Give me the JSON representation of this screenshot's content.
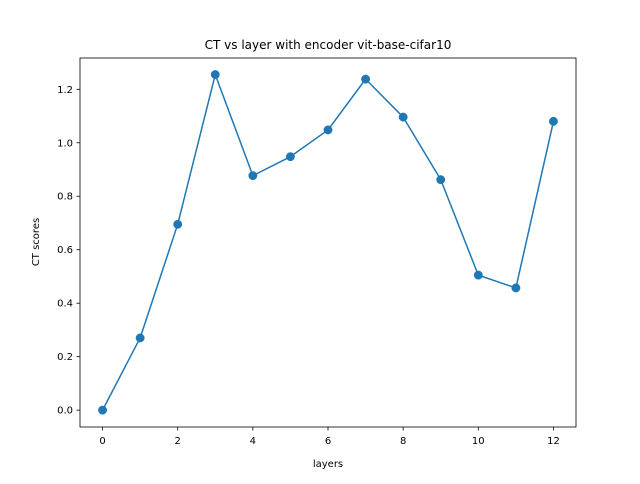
{
  "chart_data": {
    "type": "line",
    "title": "CT vs layer with encoder vit-base-cifar10",
    "xlabel": "layers",
    "ylabel": "CT scores",
    "xlim": [
      -0.6,
      12.6
    ],
    "ylim": [
      -0.063,
      1.317
    ],
    "xticks": [
      0,
      2,
      4,
      6,
      8,
      10,
      12
    ],
    "xtick_labels": [
      "0",
      "2",
      "4",
      "6",
      "8",
      "10",
      "12"
    ],
    "yticks": [
      0.0,
      0.2,
      0.4,
      0.6,
      0.8,
      1.0,
      1.2
    ],
    "ytick_labels": [
      "0.0",
      "0.2",
      "0.4",
      "0.6",
      "0.8",
      "1.0",
      "1.2"
    ],
    "grid": false,
    "series": [
      {
        "color": "#1f77b4",
        "marker": "circle",
        "x": [
          0,
          1,
          2,
          3,
          4,
          5,
          6,
          7,
          8,
          9,
          10,
          11,
          12
        ],
        "y": [
          0.0,
          0.27,
          0.695,
          1.255,
          0.877,
          0.948,
          1.048,
          1.238,
          1.096,
          0.862,
          0.505,
          0.457,
          1.08
        ]
      }
    ]
  }
}
